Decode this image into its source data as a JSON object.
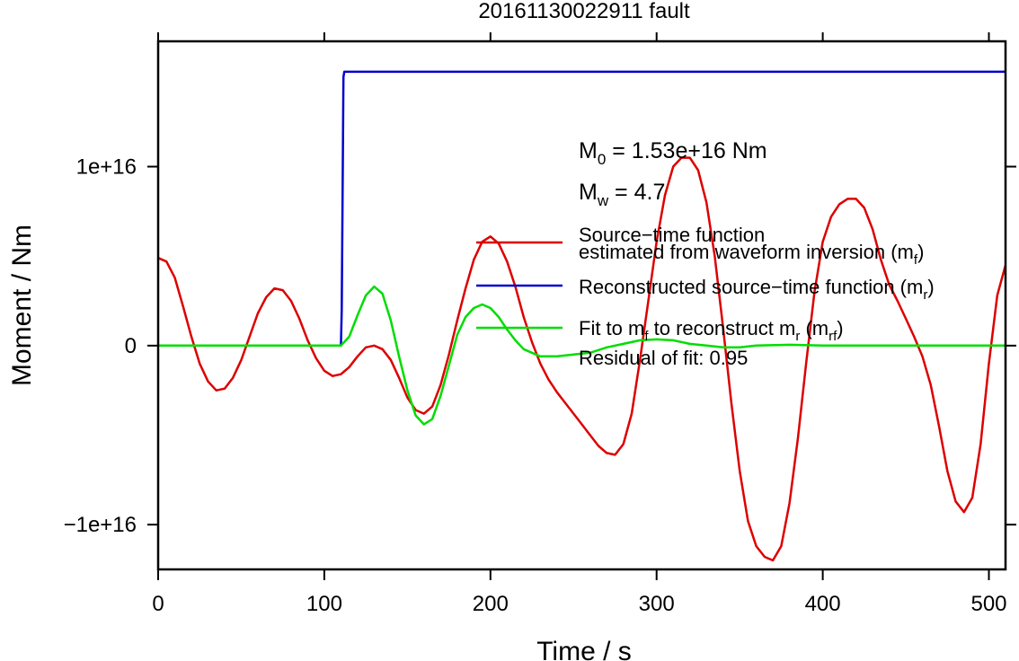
{
  "chart_data": {
    "type": "line",
    "title": "20161130022911 fault",
    "xlabel": "Time / s",
    "ylabel": "Moment / Nm",
    "xlim": [
      0,
      510
    ],
    "ylim": [
      -1.25e+16,
      1.7e+16
    ],
    "x_ticks": [
      {
        "value": 0,
        "label": "0"
      },
      {
        "value": 100,
        "label": "100"
      },
      {
        "value": 200,
        "label": "200"
      },
      {
        "value": 300,
        "label": "300"
      },
      {
        "value": 400,
        "label": "400"
      },
      {
        "value": 500,
        "label": "500"
      }
    ],
    "y_ticks": [
      {
        "value": 1e+16,
        "label": "1e+16"
      },
      {
        "value": 0,
        "label": "0"
      },
      {
        "value": -1e+16,
        "label": "−1e+16"
      }
    ],
    "grid": false,
    "legend_placement": "center-right",
    "annotations": {
      "m0": {
        "main": "M",
        "sub": "0",
        "rest": " = 1.53e+16 Nm"
      },
      "mw": {
        "main": "M",
        "sub": "w",
        "rest": " = 4.7"
      },
      "residual": "Residual of fit: 0.95"
    },
    "series": [
      {
        "key": "mf",
        "color": "#dd0000",
        "legend": [
          {
            "text": "Source−time function"
          },
          {
            "text": "estimated from waveform inversion (m",
            "sub": "f",
            "after": ")"
          }
        ],
        "points": [
          [
            0,
            4900000000000000.0
          ],
          [
            5,
            4700000000000000.0
          ],
          [
            10,
            3800000000000000.0
          ],
          [
            15,
            2200000000000000.0
          ],
          [
            20,
            500000000000000.0
          ],
          [
            25,
            -1000000000000000.0
          ],
          [
            30,
            -2000000000000000.0
          ],
          [
            35,
            -2500000000000000.0
          ],
          [
            40,
            -2400000000000000.0
          ],
          [
            45,
            -1800000000000000.0
          ],
          [
            50,
            -800000000000000.0
          ],
          [
            55,
            500000000000000.0
          ],
          [
            60,
            1800000000000000.0
          ],
          [
            65,
            2700000000000000.0
          ],
          [
            70,
            3200000000000000.0
          ],
          [
            75,
            3100000000000000.0
          ],
          [
            80,
            2500000000000000.0
          ],
          [
            85,
            1500000000000000.0
          ],
          [
            90,
            300000000000000.0
          ],
          [
            95,
            -700000000000000.0
          ],
          [
            100,
            -1400000000000000.0
          ],
          [
            105,
            -1700000000000000.0
          ],
          [
            110,
            -1600000000000000.0
          ],
          [
            115,
            -1200000000000000.0
          ],
          [
            120,
            -600000000000000.0
          ],
          [
            125,
            -100000000000000.0
          ],
          [
            130,
            0.0
          ],
          [
            135,
            -200000000000000.0
          ],
          [
            140,
            -800000000000000.0
          ],
          [
            145,
            -1800000000000000.0
          ],
          [
            150,
            -2900000000000000.0
          ],
          [
            155,
            -3600000000000000.0
          ],
          [
            160,
            -3800000000000000.0
          ],
          [
            165,
            -3400000000000000.0
          ],
          [
            170,
            -2200000000000000.0
          ],
          [
            175,
            -500000000000000.0
          ],
          [
            180,
            1400000000000000.0
          ],
          [
            185,
            3200000000000000.0
          ],
          [
            190,
            4800000000000000.0
          ],
          [
            195,
            5800000000000000.0
          ],
          [
            200,
            6100000000000000.0
          ],
          [
            205,
            5700000000000000.0
          ],
          [
            210,
            4700000000000000.0
          ],
          [
            215,
            3300000000000000.0
          ],
          [
            220,
            1600000000000000.0
          ],
          [
            225,
            200000000000000.0
          ],
          [
            230,
            -1000000000000000.0
          ],
          [
            235,
            -1900000000000000.0
          ],
          [
            240,
            -2600000000000000.0
          ],
          [
            245,
            -3200000000000000.0
          ],
          [
            250,
            -3800000000000000.0
          ],
          [
            255,
            -4400000000000000.0
          ],
          [
            260,
            -5000000000000000.0
          ],
          [
            265,
            -5600000000000000.0
          ],
          [
            270,
            -6000000000000000.0
          ],
          [
            275,
            -6100000000000000.0
          ],
          [
            280,
            -5500000000000000.0
          ],
          [
            285,
            -3800000000000000.0
          ],
          [
            290,
            -800000000000000.0
          ],
          [
            295,
            2500000000000000.0
          ],
          [
            300,
            5800000000000000.0
          ],
          [
            305,
            8400000000000000.0
          ],
          [
            310,
            1e+16
          ],
          [
            315,
            1.05e+16
          ],
          [
            320,
            1.05e+16
          ],
          [
            325,
            9800000000000000.0
          ],
          [
            330,
            8000000000000000.0
          ],
          [
            335,
            5000000000000000.0
          ],
          [
            340,
            1000000000000000.0
          ],
          [
            345,
            -3200000000000000.0
          ],
          [
            350,
            -7000000000000000.0
          ],
          [
            355,
            -9800000000000000.0
          ],
          [
            360,
            -1.12e+16
          ],
          [
            365,
            -1.18e+16
          ],
          [
            370,
            -1.2e+16
          ],
          [
            375,
            -1.12e+16
          ],
          [
            380,
            -8800000000000000.0
          ],
          [
            385,
            -5200000000000000.0
          ],
          [
            390,
            -1000000000000000.0
          ],
          [
            395,
            3000000000000000.0
          ],
          [
            400,
            5800000000000000.0
          ],
          [
            405,
            7200000000000000.0
          ],
          [
            410,
            7900000000000000.0
          ],
          [
            415,
            8200000000000000.0
          ],
          [
            420,
            8200000000000000.0
          ],
          [
            425,
            7700000000000000.0
          ],
          [
            430,
            6500000000000000.0
          ],
          [
            435,
            4800000000000000.0
          ],
          [
            440,
            3400000000000000.0
          ],
          [
            445,
            2500000000000000.0
          ],
          [
            450,
            1500000000000000.0
          ],
          [
            455,
            500000000000000.0
          ],
          [
            460,
            -600000000000000.0
          ],
          [
            465,
            -2200000000000000.0
          ],
          [
            470,
            -4500000000000000.0
          ],
          [
            475,
            -7000000000000000.0
          ],
          [
            480,
            -8700000000000000.0
          ],
          [
            485,
            -9300000000000000.0
          ],
          [
            490,
            -8500000000000000.0
          ],
          [
            495,
            -5500000000000000.0
          ],
          [
            500,
            -1000000000000000.0
          ],
          [
            505,
            2800000000000000.0
          ],
          [
            510,
            4500000000000000.0
          ]
        ]
      },
      {
        "key": "mr",
        "color": "#0000cc",
        "legend": [
          {
            "text": "Reconstructed source−time function (m",
            "sub": "r",
            "after": ")"
          }
        ],
        "points": [
          [
            0,
            0
          ],
          [
            110,
            0
          ],
          [
            110.5,
            2000000000000000.0
          ],
          [
            111,
            8000000000000000.0
          ],
          [
            111.5,
            1.5e+16
          ],
          [
            112,
            1.53e+16
          ],
          [
            510,
            1.53e+16
          ]
        ]
      },
      {
        "key": "mrf",
        "color": "#00dd00",
        "legend": [
          {
            "text": "Fit to m",
            "sub": "f",
            "after": " to reconstruct m"
          },
          {
            "text": "",
            "sub": "r",
            "after": " (m"
          },
          {
            "text": "",
            "sub": "rf",
            "after": ")"
          }
        ],
        "points": [
          [
            0,
            0
          ],
          [
            110,
            0
          ],
          [
            115,
            500000000000000.0
          ],
          [
            120,
            1700000000000000.0
          ],
          [
            125,
            2800000000000000.0
          ],
          [
            130,
            3300000000000000.0
          ],
          [
            135,
            2900000000000000.0
          ],
          [
            140,
            1400000000000000.0
          ],
          [
            145,
            -600000000000000.0
          ],
          [
            150,
            -2500000000000000.0
          ],
          [
            155,
            -3900000000000000.0
          ],
          [
            160,
            -4400000000000000.0
          ],
          [
            165,
            -4100000000000000.0
          ],
          [
            170,
            -2800000000000000.0
          ],
          [
            175,
            -1100000000000000.0
          ],
          [
            180,
            600000000000000.0
          ],
          [
            185,
            1600000000000000.0
          ],
          [
            190,
            2100000000000000.0
          ],
          [
            195,
            2300000000000000.0
          ],
          [
            200,
            2100000000000000.0
          ],
          [
            205,
            1600000000000000.0
          ],
          [
            210,
            900000000000000.0
          ],
          [
            215,
            300000000000000.0
          ],
          [
            220,
            -200000000000000.0
          ],
          [
            225,
            -400000000000000.0
          ],
          [
            230,
            -600000000000000.0
          ],
          [
            240,
            -600000000000000.0
          ],
          [
            250,
            -500000000000000.0
          ],
          [
            260,
            -400000000000000.0
          ],
          [
            270,
            -100000000000000.0
          ],
          [
            280,
            100000000000000.0
          ],
          [
            290,
            300000000000000.0
          ],
          [
            300,
            350000000000000.0
          ],
          [
            310,
            300000000000000.0
          ],
          [
            320,
            100000000000000.0
          ],
          [
            330,
            0.0
          ],
          [
            340,
            -100000000000000.0
          ],
          [
            350,
            -100000000000000.0
          ],
          [
            360,
            0.0
          ],
          [
            380,
            50000000000000.0
          ],
          [
            400,
            0.0
          ],
          [
            440,
            0.0
          ],
          [
            510,
            0.0
          ]
        ]
      }
    ]
  }
}
